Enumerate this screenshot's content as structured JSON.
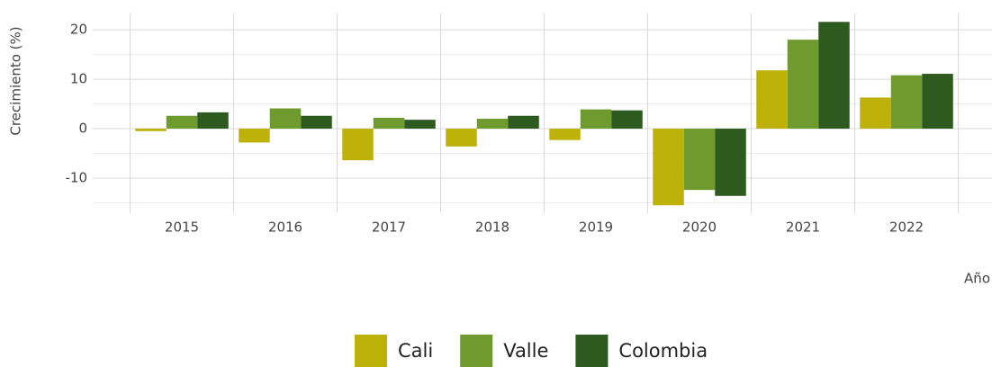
{
  "chart_data": {
    "type": "bar",
    "y_label": "Crecimiento (%)",
    "x_label": "Año",
    "categories": [
      "2015",
      "2016",
      "2017",
      "2018",
      "2019",
      "2020",
      "2021",
      "2022"
    ],
    "series": [
      {
        "name": "Cali",
        "color": "#bdb10a",
        "values": [
          -0.5,
          -2.8,
          -6.4,
          -3.6,
          -2.3,
          -15.5,
          11.8,
          6.3
        ]
      },
      {
        "name": "Valle",
        "color": "#6f9a2d",
        "values": [
          2.6,
          4.1,
          2.2,
          2.0,
          3.9,
          -12.4,
          18.0,
          10.8
        ]
      },
      {
        "name": "Colombia",
        "color": "#2d5a1f",
        "values": [
          3.3,
          2.6,
          1.8,
          2.6,
          3.7,
          -13.6,
          21.6,
          11.1
        ]
      }
    ],
    "ylim": [
      -17.1,
      23.3
    ],
    "yticks": [
      -10,
      0,
      10,
      20
    ],
    "grid": true,
    "legend": "bottom"
  }
}
